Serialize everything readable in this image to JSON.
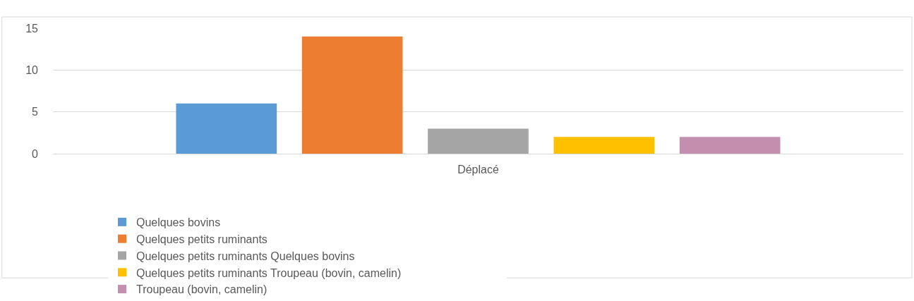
{
  "chart_data": {
    "type": "bar",
    "categories": [
      "Déplacé"
    ],
    "series": [
      {
        "name": "Quelques bovins",
        "color": "#5b9bd5",
        "values": [
          6
        ]
      },
      {
        "name": "Quelques petits ruminants",
        "color": "#ed7d31",
        "values": [
          14
        ]
      },
      {
        "name": "Quelques petits ruminants Quelques bovins",
        "color": "#a5a5a5",
        "values": [
          3
        ]
      },
      {
        "name": "Quelques petits ruminants Troupeau (bovin, camelin)",
        "color": "#ffc000",
        "values": [
          2
        ]
      },
      {
        "name": "Troupeau (bovin, camelin)",
        "color": "#c48faf",
        "values": [
          2
        ]
      }
    ],
    "ylim": [
      0,
      15
    ],
    "yticks": [
      0,
      5,
      10,
      15
    ],
    "grid": "y",
    "legend": "bottom"
  }
}
